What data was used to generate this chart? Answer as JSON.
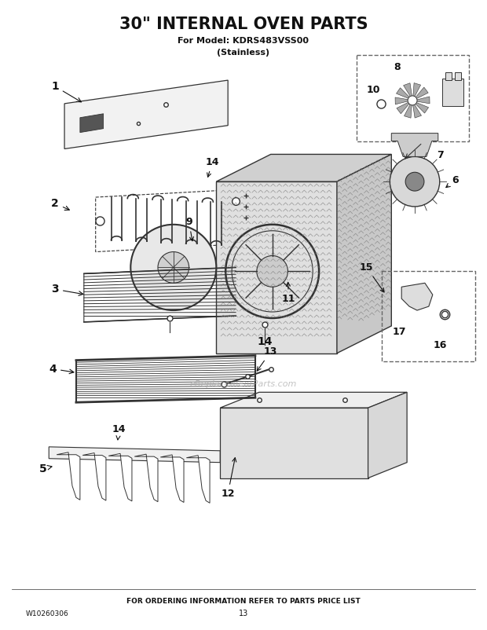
{
  "title": "30\" INTERNAL OVEN PARTS",
  "subtitle1": "For Model: KDRS483VSS00",
  "subtitle2": "(Stainless)",
  "footer_center": "FOR ORDERING INFORMATION REFER TO PARTS PRICE LIST",
  "footer_left": "W10260306",
  "footer_page": "13",
  "bg_color": "#ffffff",
  "watermark": "eReplacementParts.com",
  "ec": "#333333"
}
